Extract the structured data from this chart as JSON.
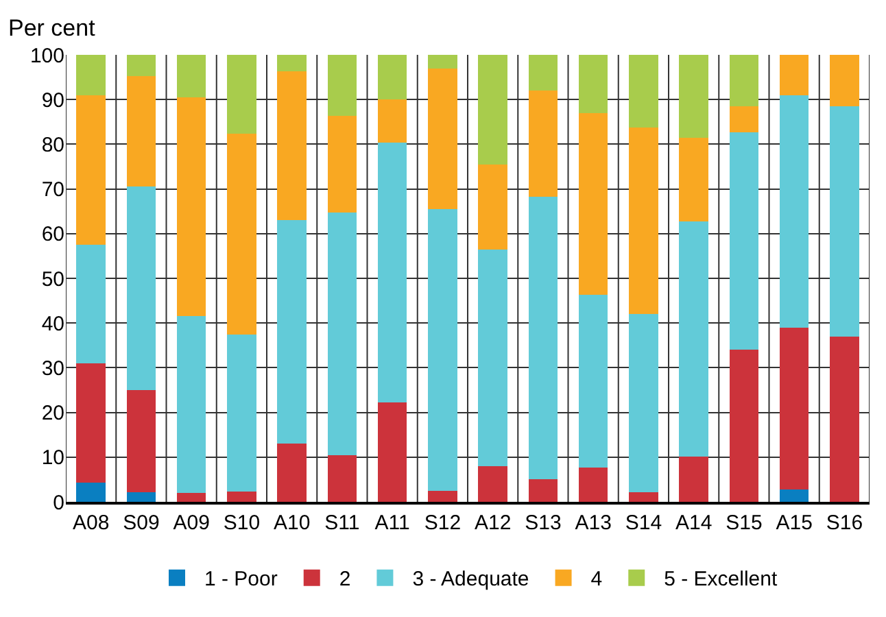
{
  "chart_data": {
    "type": "bar",
    "stacked": true,
    "ylabel": "Per cent",
    "categories": [
      "A08",
      "S09",
      "A09",
      "S10",
      "A10",
      "S11",
      "A11",
      "S12",
      "A12",
      "S13",
      "A13",
      "S14",
      "A14",
      "S15",
      "A15",
      "S16"
    ],
    "ylim": [
      0,
      100
    ],
    "yticks": [
      0,
      10,
      20,
      30,
      40,
      50,
      60,
      70,
      80,
      90,
      100
    ],
    "grid": true,
    "legend": "bottom",
    "series": [
      {
        "name": "1 - Poor",
        "color": "#0a7fc1",
        "values": [
          4.3,
          2.2,
          0,
          0,
          0,
          0,
          0,
          0,
          0,
          0,
          0,
          0,
          0,
          0,
          2.8,
          0
        ]
      },
      {
        "name": "2",
        "color": "#cc333b",
        "values": [
          26.7,
          22.8,
          2.0,
          2.3,
          13,
          10.5,
          22.3,
          2.5,
          8,
          5,
          7.7,
          2.2,
          10.2,
          34,
          36.2,
          37
        ]
      },
      {
        "name": "3 - Adequate",
        "color": "#62cbd8",
        "values": [
          26.5,
          45.5,
          39.5,
          35.2,
          50,
          54.2,
          58,
          63,
          48.5,
          63.3,
          38.6,
          39.8,
          52.5,
          48.7,
          52,
          51.5
        ]
      },
      {
        "name": "4",
        "color": "#f9a822",
        "values": [
          33.5,
          24.8,
          49,
          44.8,
          33.3,
          21.6,
          9.7,
          31.5,
          19,
          23.7,
          40.7,
          41.7,
          18.8,
          5.8,
          9,
          11.5
        ]
      },
      {
        "name": "5 - Excellent",
        "color": "#a8cc4c",
        "values": [
          9,
          4.7,
          9.5,
          17.7,
          3.7,
          13.7,
          10,
          3,
          24.5,
          8,
          13,
          16.3,
          18.5,
          11.5,
          0,
          0
        ]
      }
    ]
  }
}
